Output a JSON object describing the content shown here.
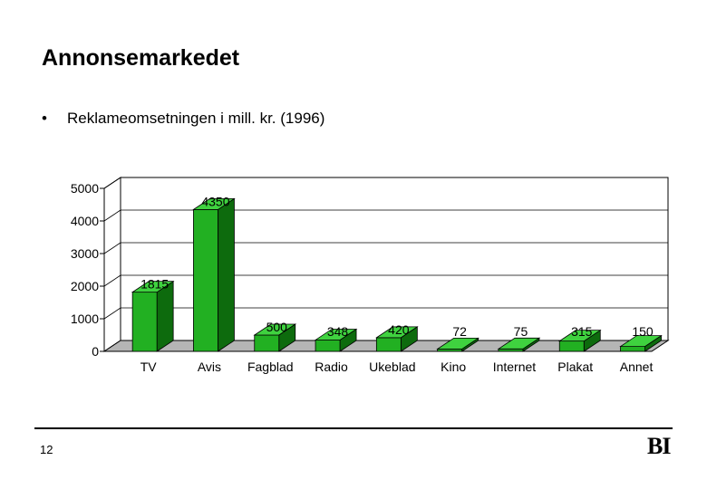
{
  "slide": {
    "title": "Annonsemarkedet",
    "bullet": "Reklameomsetningen i mill. kr. (1996)",
    "page_number": "12",
    "logo": "BI"
  },
  "chart_data": {
    "type": "bar",
    "categories": [
      "TV",
      "Avis",
      "Fagblad",
      "Radio",
      "Ukeblad",
      "Kino",
      "Internet",
      "Plakat",
      "Annet"
    ],
    "values": [
      1815,
      4350,
      500,
      348,
      420,
      72,
      75,
      315,
      150
    ],
    "data_labels": [
      "1815",
      "4350",
      "500",
      "348",
      "420",
      "72",
      "75",
      "315",
      "150"
    ],
    "yticks": [
      "0",
      "1000",
      "2000",
      "3000",
      "4000",
      "5000"
    ],
    "ylim": [
      0,
      5000
    ],
    "grid": true,
    "legend": "none",
    "colors": {
      "bar_front": "#22b022",
      "bar_top": "#3fd23f",
      "bar_side": "#0d6b0d",
      "floor": "#b5b5b5"
    }
  }
}
